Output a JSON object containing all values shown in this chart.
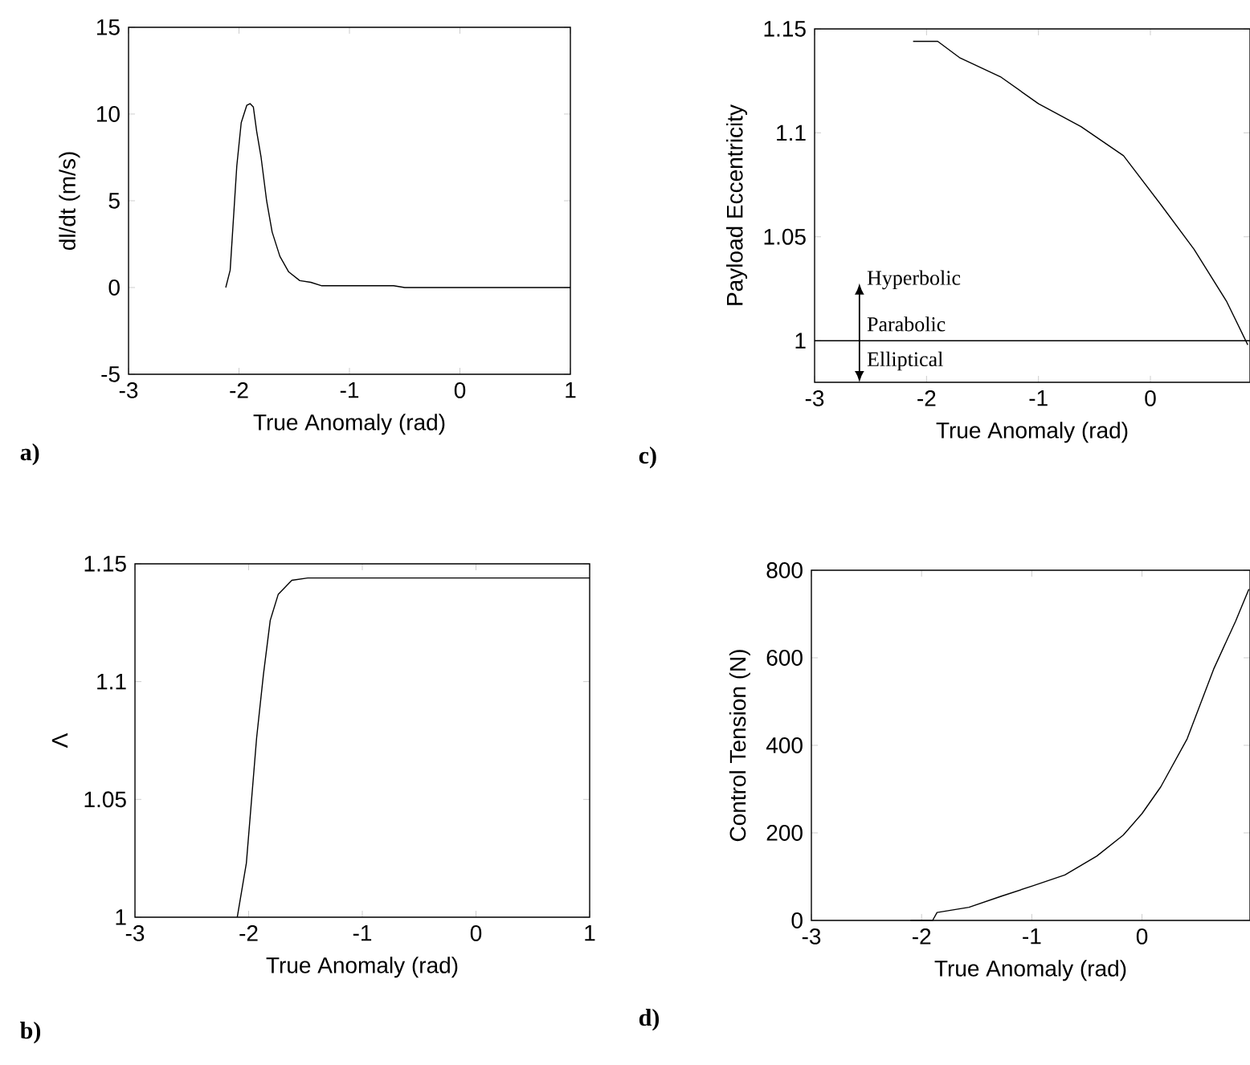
{
  "chart_data": [
    {
      "type": "line",
      "xlabel": "True Anomaly (rad)",
      "ylabel": "dl/dt (m/s)",
      "xlim": [
        -3,
        1
      ],
      "xticks": [
        -3,
        -2,
        -1,
        0,
        1
      ],
      "ylim": [
        -5,
        15
      ],
      "yticks": [
        -5,
        0,
        5,
        10,
        15
      ],
      "annotations": [
        "a)"
      ],
      "x": [
        -2.12,
        -2.08,
        -2.05,
        -2.02,
        -1.98,
        -1.93,
        -1.9,
        -1.87,
        -1.84,
        -1.8,
        -1.75,
        -1.7,
        -1.63,
        -1.55,
        -1.45,
        -1.35,
        -1.25,
        -1,
        -0.7,
        -0.6,
        -0.5,
        0,
        0.85,
        1
      ],
      "values": [
        0,
        1,
        4,
        7,
        9.5,
        10.5,
        10.6,
        10.4,
        9,
        7.5,
        5,
        3.2,
        1.8,
        0.9,
        0.4,
        0.3,
        0.1,
        0.1,
        0.1,
        0.1,
        0,
        0,
        0,
        0
      ]
    },
    {
      "type": "line",
      "xlabel": "True Anomaly (rad)",
      "ylabel": "Payload Eccentricity",
      "xlim": [
        -3,
        0.89
      ],
      "xticks": [
        -3,
        -2,
        -1,
        0
      ],
      "ylim": [
        0.98,
        1.15
      ],
      "yticks": [
        1,
        1.05,
        1.1,
        1.15
      ],
      "annotations": [
        "c)",
        "Hyperbolic",
        "Parabolic",
        "Elliptical"
      ],
      "ref_lines": [
        {
          "axis": "y",
          "value": 1
        }
      ],
      "x": [
        -2.12,
        -1.9,
        -1.7,
        -1.34,
        -1.0,
        -0.62,
        -0.24,
        0.1,
        0.39,
        0.68,
        0.87
      ],
      "values": [
        1.144,
        1.144,
        1.136,
        1.127,
        1.114,
        1.103,
        1.089,
        1.065,
        1.044,
        1.019,
        0.998
      ]
    },
    {
      "type": "line",
      "xlabel": "True Anomaly (rad)",
      "ylabel": "Λ",
      "xlim": [
        -3,
        1
      ],
      "xticks": [
        -3,
        -2,
        -1,
        0,
        1
      ],
      "ylim": [
        1,
        1.15
      ],
      "yticks": [
        1,
        1.05,
        1.1,
        1.15
      ],
      "annotations": [
        "b)"
      ],
      "x": [
        -2.1,
        -2.02,
        -1.93,
        -1.87,
        -1.81,
        -1.74,
        -1.62,
        -1.48,
        1
      ],
      "values": [
        1.0,
        1.023,
        1.076,
        1.103,
        1.126,
        1.137,
        1.143,
        1.144,
        1.144
      ]
    },
    {
      "type": "line",
      "xlabel": "True Anomaly (rad)",
      "ylabel": "Control Tension (N)",
      "xlim": [
        -3,
        0.98
      ],
      "xticks": [
        -3,
        -2,
        -1,
        0
      ],
      "ylim": [
        0,
        800
      ],
      "yticks": [
        0,
        200,
        400,
        600,
        800
      ],
      "annotations": [
        "d)"
      ],
      "x": [
        -2.1,
        -1.9,
        -1.86,
        -1.57,
        -1.28,
        -0.99,
        -0.7,
        -0.41,
        -0.17,
        0,
        0.17,
        0.41,
        0.65,
        0.85,
        0.97
      ],
      "values": [
        0,
        0,
        18,
        30,
        55,
        79,
        104,
        147,
        195,
        244,
        305,
        415,
        574,
        684,
        757
      ]
    }
  ]
}
